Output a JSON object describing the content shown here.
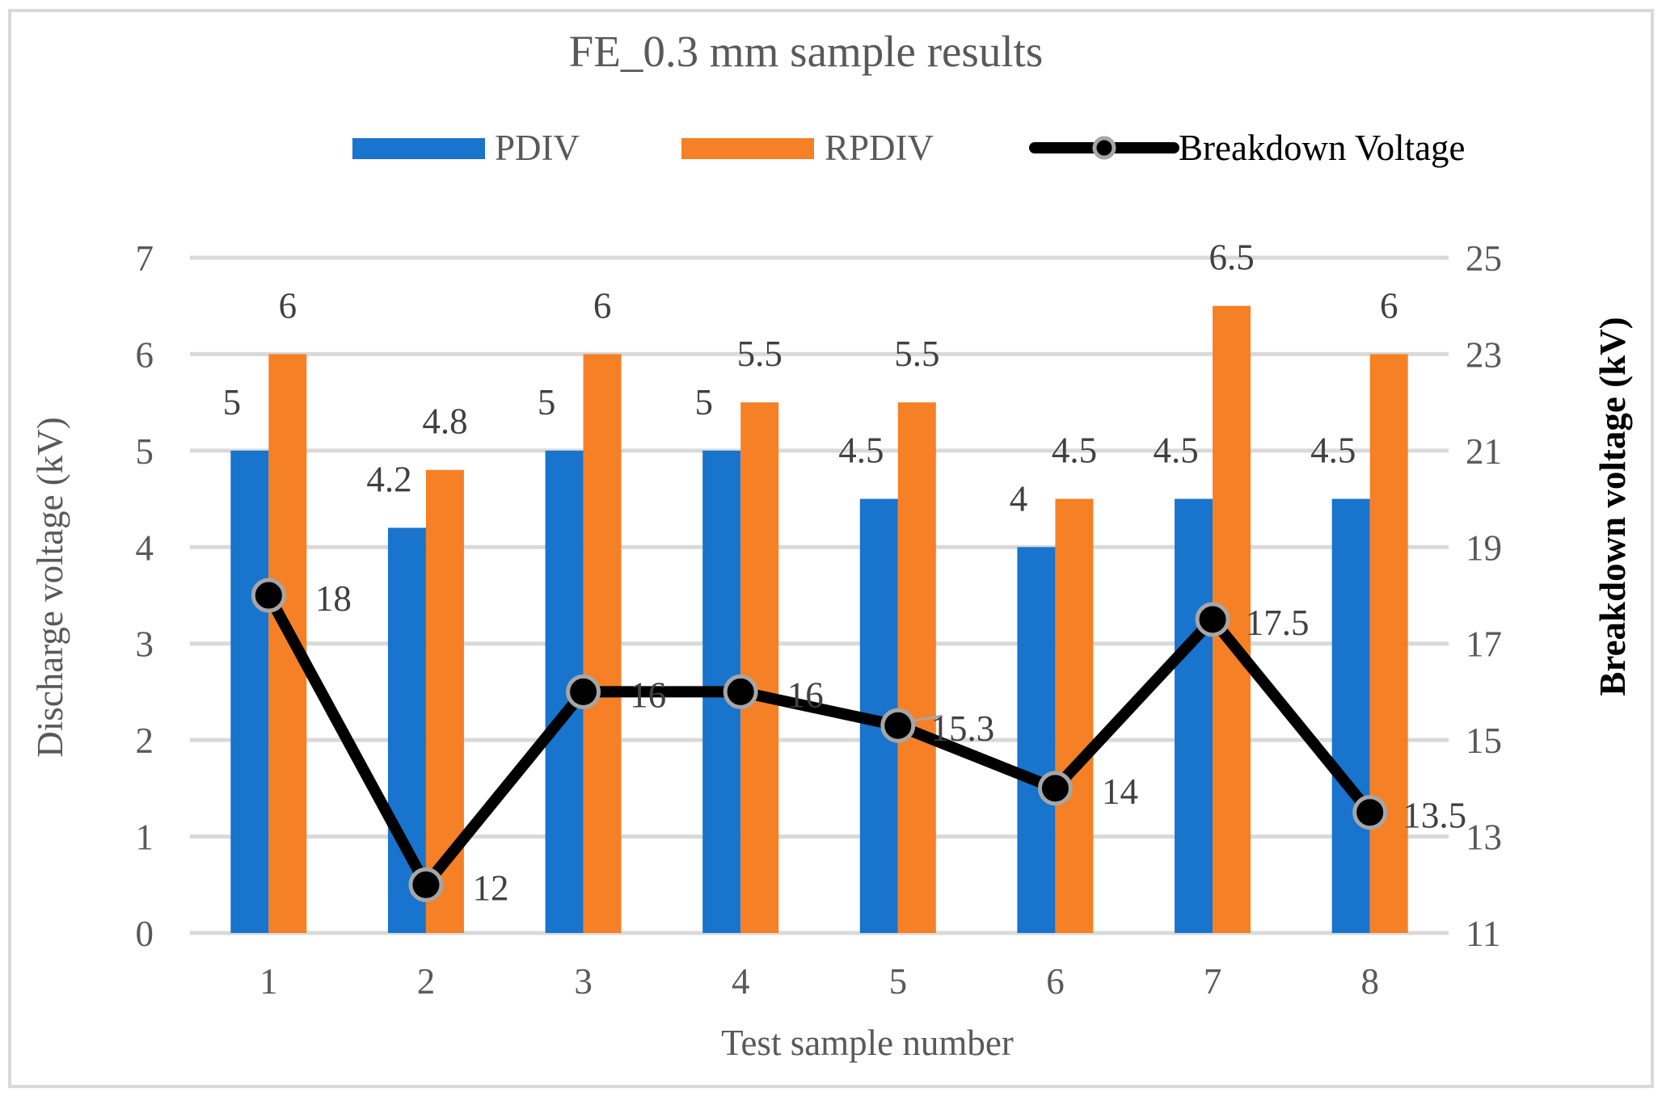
{
  "chart_data": {
    "type": "bar",
    "title": "FE_0.3 mm sample results",
    "xlabel": "Test sample number",
    "ylabel": "Discharge voltage (kV)",
    "y2label": "Breakdown voltage (kV)",
    "categories": [
      "1",
      "2",
      "3",
      "4",
      "5",
      "6",
      "7",
      "8"
    ],
    "ylim": [
      0,
      7
    ],
    "yticks": [
      0,
      1,
      2,
      3,
      4,
      5,
      6,
      7
    ],
    "y2lim": [
      11,
      25
    ],
    "y2ticks": [
      11,
      13,
      15,
      17,
      19,
      21,
      23,
      25
    ],
    "grid": true,
    "legend_position": "top",
    "series": [
      {
        "name": "PDIV",
        "type": "bar",
        "axis": "left",
        "color": "#1874cd",
        "values": [
          5,
          4.2,
          5,
          5,
          4.5,
          4,
          4.5,
          4.5
        ],
        "labels": [
          "5",
          "4.2",
          "5",
          "5",
          "4.5",
          "4",
          "4.5",
          "4.5"
        ]
      },
      {
        "name": "RPDIV",
        "type": "bar",
        "axis": "left",
        "color": "#f58025",
        "values": [
          6,
          4.8,
          6,
          5.5,
          5.5,
          4.5,
          6.5,
          6
        ],
        "labels": [
          "6",
          "4.8",
          "6",
          "5.5",
          "5.5",
          "4.5",
          "6.5",
          "6"
        ]
      },
      {
        "name": "Breakdown Voltage",
        "type": "line",
        "axis": "right",
        "color": "#000000",
        "marker_edge_color": "#a6a6a6",
        "values": [
          18,
          12,
          16,
          16,
          15.3,
          14,
          17.5,
          13.5
        ],
        "labels": [
          "18",
          "12",
          "16",
          "16",
          "15.3",
          "14",
          "17.5",
          "13.5"
        ]
      }
    ]
  },
  "colors": {
    "frame": "#d9d9d9",
    "gridline": "#d9d9d9",
    "text_gray": "#595959"
  }
}
